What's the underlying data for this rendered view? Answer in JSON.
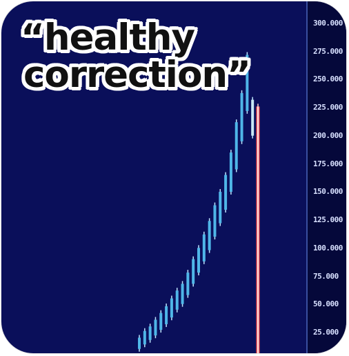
{
  "caption": {
    "line1": "“healthy",
    "line2": "correction”"
  },
  "price_axis": {
    "ticks": [
      "300.000",
      "275.000",
      "250.000",
      "225.000",
      "200.000",
      "175.000",
      "150.000",
      "125.000",
      "100.000",
      "75.000",
      "50.000",
      "25.000"
    ]
  },
  "colors": {
    "background": "#0a0f5a",
    "up_candle": "#4fb6e8",
    "up_candle_light": "#bfe6ff",
    "crash_candle": "#ff5a5a",
    "caption_text": "#111111",
    "caption_outline": "#ffffff"
  },
  "chart_data": {
    "type": "candlestick",
    "y_axis_ticks": [
      300,
      275,
      250,
      225,
      200,
      175,
      150,
      125,
      100,
      75,
      50,
      25
    ],
    "trend": "steady rise then sharp drop",
    "candles": [
      {
        "dir": "up",
        "low": 10,
        "high": 20
      },
      {
        "dir": "up",
        "low": 14,
        "high": 26
      },
      {
        "dir": "up",
        "low": 18,
        "high": 30
      },
      {
        "dir": "up",
        "low": 22,
        "high": 36
      },
      {
        "dir": "up",
        "low": 27,
        "high": 42
      },
      {
        "dir": "up",
        "low": 32,
        "high": 48
      },
      {
        "dir": "up",
        "low": 38,
        "high": 55
      },
      {
        "dir": "up",
        "low": 45,
        "high": 62
      },
      {
        "dir": "up",
        "low": 50,
        "high": 68
      },
      {
        "dir": "up",
        "low": 58,
        "high": 78
      },
      {
        "dir": "up",
        "low": 68,
        "high": 90
      },
      {
        "dir": "up",
        "low": 78,
        "high": 100
      },
      {
        "dir": "up",
        "low": 88,
        "high": 112
      },
      {
        "dir": "up",
        "low": 98,
        "high": 124
      },
      {
        "dir": "up",
        "low": 110,
        "high": 138
      },
      {
        "dir": "up",
        "low": 122,
        "high": 150
      },
      {
        "dir": "up",
        "low": 134,
        "high": 165
      },
      {
        "dir": "up",
        "low": 150,
        "high": 185
      },
      {
        "dir": "up",
        "low": 170,
        "high": 212
      },
      {
        "dir": "up",
        "low": 195,
        "high": 238
      },
      {
        "dir": "up",
        "low": 222,
        "high": 272
      },
      {
        "dir": "down",
        "low": 200,
        "high": 232
      },
      {
        "dir": "crash",
        "low": 0,
        "high": 226
      }
    ]
  }
}
